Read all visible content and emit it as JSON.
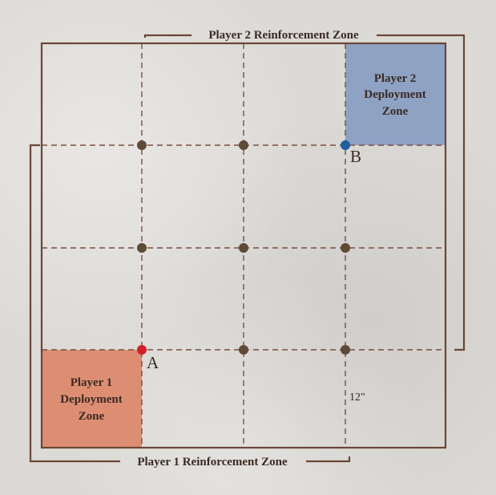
{
  "colors": {
    "line": "#6b4638",
    "grid": "#7a4e42",
    "marker": "#5e4a35",
    "point_a": "#d0202a",
    "point_b": "#1f5fa0",
    "p1_zone": "#dd8e72",
    "p2_zone": "#8ea2c4"
  },
  "reinforcement": {
    "player2": "Player 2 Reinforcement Zone",
    "player1": "Player 1 Reinforcement Zone"
  },
  "deployment": {
    "player2": [
      "Player 2",
      "Deployment",
      "Zone"
    ],
    "player1": [
      "Player 1",
      "Deployment",
      "Zone"
    ]
  },
  "points": {
    "a": "A",
    "b": "B"
  },
  "measure": "12\""
}
